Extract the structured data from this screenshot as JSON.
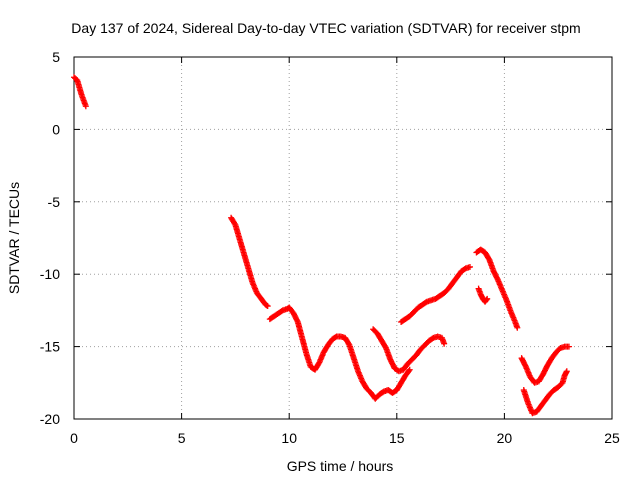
{
  "chart_data": {
    "type": "scatter",
    "title": "Day 137 of 2024, Sidereal Day-to-day VTEC variation (SDTVAR) for receiver stpm",
    "xlabel": "GPS time / hours",
    "ylabel": "SDTVAR / TECUs",
    "xlim": [
      0,
      25
    ],
    "ylim": [
      -20,
      5
    ],
    "xticks": [
      0,
      5,
      10,
      15,
      20,
      25
    ],
    "yticks": [
      5,
      0,
      -5,
      -10,
      -15,
      -20
    ],
    "xtick_labels": [
      "0",
      "5",
      "10",
      "15",
      "20",
      "25"
    ],
    "ytick_labels": [
      "5",
      "0",
      "-5",
      "-10",
      "-15",
      "-20"
    ],
    "grid": true,
    "marker": "+",
    "series": [
      {
        "name": "SDTVAR",
        "color": "#ff0000",
        "segments": [
          [
            [
              0.0,
              3.6
            ],
            [
              0.15,
              3.4
            ],
            [
              0.25,
              2.9
            ],
            [
              0.35,
              2.4
            ],
            [
              0.45,
              2.0
            ],
            [
              0.55,
              1.6
            ]
          ],
          [
            [
              7.3,
              -6.1
            ],
            [
              7.5,
              -6.6
            ],
            [
              7.7,
              -7.6
            ],
            [
              7.9,
              -8.6
            ],
            [
              8.1,
              -9.6
            ],
            [
              8.3,
              -10.6
            ],
            [
              8.5,
              -11.3
            ],
            [
              8.7,
              -11.7
            ],
            [
              8.9,
              -12.1
            ],
            [
              9.0,
              -12.2
            ]
          ],
          [
            [
              9.1,
              -13.1
            ],
            [
              9.3,
              -12.9
            ],
            [
              9.5,
              -12.7
            ],
            [
              9.7,
              -12.5
            ],
            [
              9.9,
              -12.4
            ],
            [
              10.0,
              -12.3
            ],
            [
              10.2,
              -12.7
            ],
            [
              10.4,
              -13.3
            ],
            [
              10.6,
              -14.4
            ],
            [
              10.8,
              -15.5
            ],
            [
              11.0,
              -16.4
            ],
            [
              11.2,
              -16.6
            ],
            [
              11.4,
              -16.1
            ],
            [
              11.6,
              -15.4
            ],
            [
              11.8,
              -14.9
            ],
            [
              12.0,
              -14.5
            ],
            [
              12.2,
              -14.3
            ],
            [
              12.4,
              -14.3
            ],
            [
              12.6,
              -14.4
            ],
            [
              12.8,
              -14.9
            ],
            [
              13.0,
              -15.8
            ],
            [
              13.2,
              -16.7
            ],
            [
              13.4,
              -17.4
            ],
            [
              13.6,
              -17.9
            ],
            [
              13.8,
              -18.2
            ],
            [
              14.0,
              -18.6
            ],
            [
              14.2,
              -18.3
            ],
            [
              14.4,
              -18.1
            ],
            [
              14.6,
              -18.0
            ],
            [
              14.8,
              -18.2
            ],
            [
              15.0,
              -18.0
            ],
            [
              15.2,
              -17.5
            ],
            [
              15.4,
              -17.0
            ],
            [
              15.6,
              -16.6
            ]
          ],
          [
            [
              13.9,
              -13.8
            ],
            [
              14.1,
              -14.1
            ],
            [
              14.3,
              -14.6
            ],
            [
              14.5,
              -15.1
            ],
            [
              14.7,
              -15.9
            ],
            [
              14.9,
              -16.5
            ],
            [
              15.1,
              -16.7
            ],
            [
              15.3,
              -16.6
            ],
            [
              15.5,
              -16.2
            ],
            [
              15.7,
              -15.9
            ],
            [
              15.9,
              -15.6
            ],
            [
              16.1,
              -15.2
            ],
            [
              16.3,
              -14.9
            ],
            [
              16.5,
              -14.6
            ],
            [
              16.7,
              -14.4
            ],
            [
              16.9,
              -14.3
            ],
            [
              17.1,
              -14.4
            ],
            [
              17.2,
              -14.8
            ]
          ],
          [
            [
              15.2,
              -13.3
            ],
            [
              15.4,
              -13.1
            ],
            [
              15.6,
              -12.9
            ],
            [
              15.8,
              -12.6
            ],
            [
              16.0,
              -12.3
            ],
            [
              16.2,
              -12.1
            ],
            [
              16.4,
              -11.9
            ],
            [
              16.6,
              -11.8
            ],
            [
              16.8,
              -11.7
            ],
            [
              17.0,
              -11.5
            ],
            [
              17.2,
              -11.3
            ],
            [
              17.4,
              -11.0
            ],
            [
              17.6,
              -10.6
            ],
            [
              17.8,
              -10.2
            ],
            [
              18.0,
              -9.8
            ],
            [
              18.2,
              -9.6
            ],
            [
              18.4,
              -9.5
            ]
          ],
          [
            [
              18.7,
              -8.5
            ],
            [
              18.9,
              -8.3
            ],
            [
              19.1,
              -8.5
            ],
            [
              19.3,
              -9.0
            ],
            [
              19.5,
              -9.8
            ],
            [
              19.7,
              -10.4
            ],
            [
              19.9,
              -11.1
            ],
            [
              20.1,
              -11.8
            ],
            [
              20.3,
              -12.6
            ],
            [
              20.5,
              -13.3
            ],
            [
              20.6,
              -13.7
            ]
          ],
          [
            [
              18.8,
              -11.0
            ],
            [
              18.9,
              -11.4
            ],
            [
              19.0,
              -11.7
            ],
            [
              19.1,
              -11.9
            ],
            [
              19.2,
              -11.7
            ]
          ],
          [
            [
              20.8,
              -15.8
            ],
            [
              21.0,
              -16.4
            ],
            [
              21.2,
              -17.1
            ],
            [
              21.4,
              -17.5
            ],
            [
              21.6,
              -17.4
            ],
            [
              21.8,
              -16.9
            ],
            [
              22.0,
              -16.3
            ],
            [
              22.2,
              -15.8
            ],
            [
              22.4,
              -15.4
            ],
            [
              22.6,
              -15.1
            ],
            [
              22.8,
              -15.0
            ],
            [
              23.0,
              -15.0
            ]
          ],
          [
            [
              20.9,
              -18.0
            ],
            [
              21.1,
              -18.9
            ],
            [
              21.3,
              -19.6
            ],
            [
              21.5,
              -19.5
            ],
            [
              21.7,
              -19.1
            ],
            [
              21.9,
              -18.7
            ],
            [
              22.1,
              -18.3
            ],
            [
              22.3,
              -18.0
            ],
            [
              22.5,
              -17.8
            ],
            [
              22.7,
              -17.5
            ],
            [
              22.8,
              -17.0
            ],
            [
              22.9,
              -16.7
            ]
          ]
        ]
      }
    ]
  }
}
